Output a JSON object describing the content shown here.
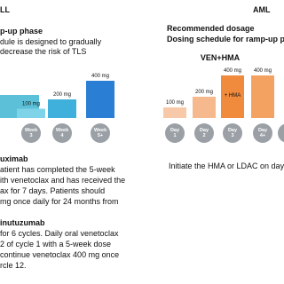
{
  "left": {
    "header": "LL",
    "phase_title": "p-up phase",
    "phase_lines": [
      "dule is designed to gradually",
      "decrease the risk of TLS"
    ],
    "steps": [
      {
        "label": "100 mg",
        "dose": 100,
        "period": [
          "Week",
          "3"
        ]
      },
      {
        "label": "200 mg",
        "dose": 200,
        "period": [
          "Week",
          "4"
        ]
      },
      {
        "label": "400 mg",
        "dose": 400,
        "period": [
          "Week",
          "5+"
        ]
      }
    ],
    "sections": [
      {
        "title": "uximab",
        "lines": [
          "atient has completed the 5-week",
          "ith venetoclax and has received the",
          "ax for 7 days. Patients should",
          "mg once daily for 24 months from"
        ]
      },
      {
        "title": "inutuzumab",
        "lines": [
          "for 6 cycles. Daily oral venetoclax",
          "2 of cycle 1 with a 5-week dose",
          "continue venetoclax 400 mg once",
          "rcle 12."
        ]
      }
    ]
  },
  "right": {
    "header": "AML",
    "titles": [
      "Recommended dosage",
      "Dosing schedule for ramp-up phas"
    ],
    "regimen": "VEN+HMA",
    "steps": [
      {
        "label": "100 mg",
        "dose": 100,
        "period": [
          "Day",
          "1"
        ]
      },
      {
        "label": "200 mg",
        "dose": 200,
        "period": [
          "Day",
          "2"
        ]
      },
      {
        "label": "400 mg",
        "dose": 400,
        "period": [
          "Day",
          "3"
        ],
        "note": "+ HMA"
      },
      {
        "label": "400 mg",
        "dose": 400,
        "period": [
          "Day",
          "4+"
        ]
      }
    ],
    "footer": "Initiate the HMA or LDAC on day"
  }
}
